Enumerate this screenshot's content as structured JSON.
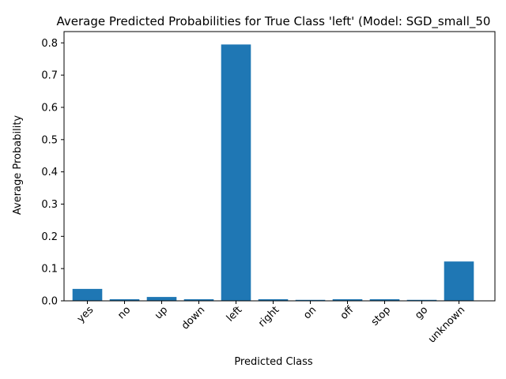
{
  "chart_data": {
    "type": "bar",
    "title": "Average Predicted Probabilities for True Class 'left' (Model: SGD_small_50",
    "xlabel": "Predicted Class",
    "ylabel": "Average Probability",
    "categories": [
      "yes",
      "no",
      "up",
      "down",
      "left",
      "right",
      "on",
      "off",
      "stop",
      "go",
      "unknown"
    ],
    "values": [
      0.037,
      0.005,
      0.012,
      0.005,
      0.795,
      0.005,
      0.003,
      0.005,
      0.005,
      0.003,
      0.122
    ],
    "ylim": [
      0,
      0.835
    ],
    "yticks": [
      0.0,
      0.1,
      0.2,
      0.3,
      0.4,
      0.5,
      0.6,
      0.7,
      0.8
    ],
    "ytick_labels": [
      "0.0",
      "0.1",
      "0.2",
      "0.3",
      "0.4",
      "0.5",
      "0.6",
      "0.7",
      "0.8"
    ],
    "bar_color": "#1f77b4",
    "grid": false,
    "legend": false
  }
}
